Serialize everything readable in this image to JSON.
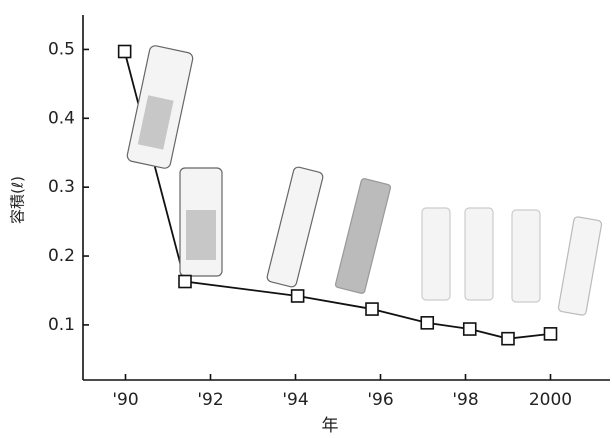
{
  "chart_data": {
    "type": "line",
    "x_label": "年",
    "y_label": "容積(ℓ)",
    "x": [
      1989.98,
      1991.4,
      1994.05,
      1995.8,
      1997.1,
      1998.1,
      1999.0,
      2000.0
    ],
    "series": [
      {
        "color": "#111111",
        "values": [
          0.497,
          0.163,
          0.142,
          0.123,
          0.103,
          0.094,
          0.08,
          0.087
        ]
      }
    ],
    "xlim": [
      1989,
      2001.4
    ],
    "ylim": [
      0.02,
      0.55
    ],
    "xticks": [
      {
        "value": 1990,
        "label": "'90"
      },
      {
        "value": 1992,
        "label": "'92"
      },
      {
        "value": 1994,
        "label": "'94"
      },
      {
        "value": 1996,
        "label": "'96"
      },
      {
        "value": 1998,
        "label": "'98"
      },
      {
        "value": 2000,
        "label": "2000"
      }
    ],
    "yticks": [
      0.1,
      0.2,
      0.3,
      0.4,
      0.5
    ],
    "grid": false
  }
}
